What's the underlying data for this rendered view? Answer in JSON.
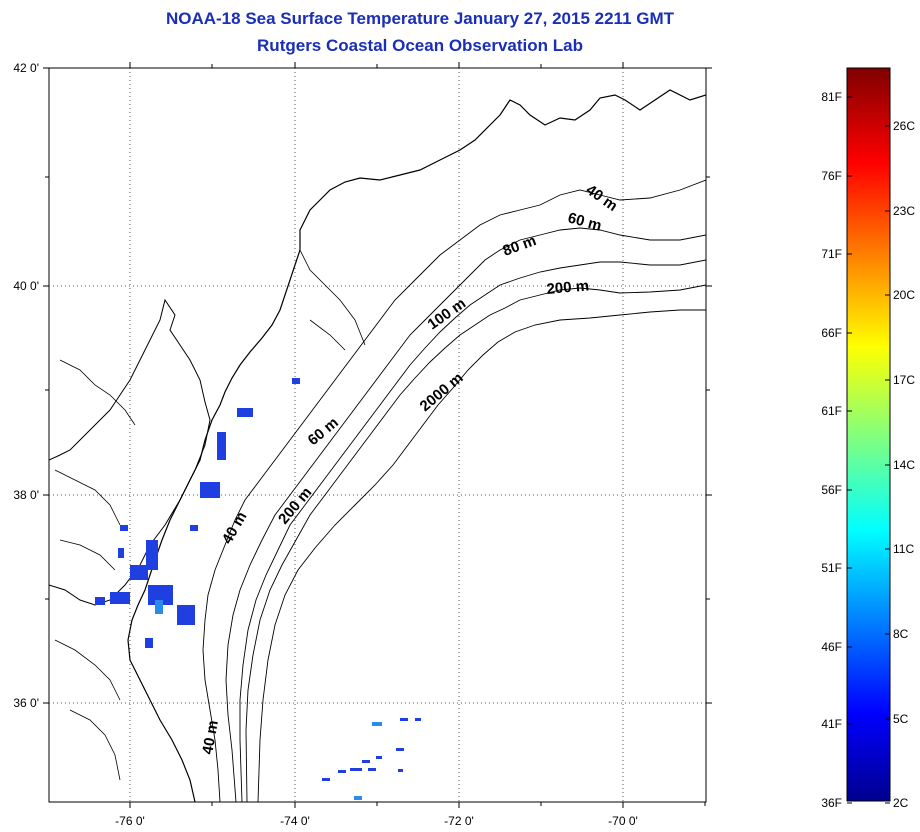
{
  "title_line1": "NOAA-18 Sea Surface Temperature January 27, 2015 2211 GMT",
  "title_line2": "Rutgers Coastal Ocean Observation Lab",
  "map": {
    "lat_labels": [
      "42 0'",
      "40 0'",
      "38 0'",
      "36 0'"
    ],
    "lon_labels": [
      "-76 0'",
      "-74 0'",
      "-72 0'",
      "-70 0'"
    ],
    "grid": "dotted",
    "depth_contour_labels": [
      "40 m",
      "60 m",
      "80 m",
      "200 m",
      "100 m",
      "2000 m",
      "60 m",
      "200 m",
      "40 m",
      "40 m"
    ]
  },
  "colorbar": {
    "fahrenheit_labels": [
      "81F",
      "76F",
      "71F",
      "66F",
      "61F",
      "56F",
      "51F",
      "46F",
      "41F",
      "36F"
    ],
    "celsius_labels": [
      "26C",
      "23C",
      "20C",
      "17C",
      "14C",
      "11C",
      "8C",
      "5C",
      "2C"
    ],
    "colormap": "jet"
  },
  "colors": {
    "title": "#1a2eb8",
    "sst_patch": "#1f3fe0",
    "sst_patch_light": "#2a8ce8"
  }
}
